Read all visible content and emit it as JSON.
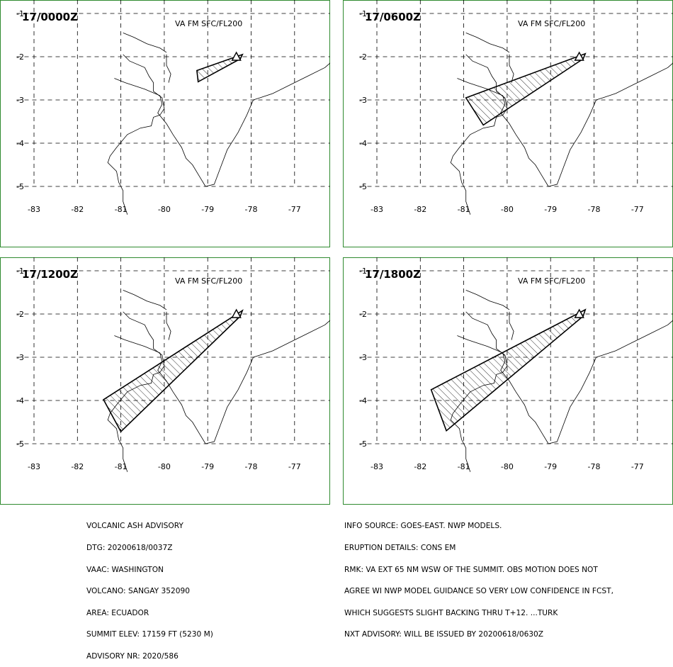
{
  "map_layout": {
    "lon_ticks": [
      -83,
      -82,
      -81,
      -80,
      -79,
      -78,
      -77
    ],
    "lat_ticks": [
      -1,
      -2,
      -3,
      -4,
      -5
    ],
    "frame_color": "#2f8a2f",
    "grid_style": "dashed"
  },
  "panels": [
    {
      "time_label": "17/0000Z",
      "level_label": "VA FM SFC/FL200",
      "ash_polygon": [
        [
          -79.25,
          -2.32
        ],
        [
          -78.2,
          -1.95
        ],
        [
          -78.25,
          -2.05
        ],
        [
          -79.22,
          -2.58
        ]
      ]
    },
    {
      "time_label": "17/0600Z",
      "level_label": "VA FM SFC/FL200",
      "ash_polygon": [
        [
          -80.95,
          -2.95
        ],
        [
          -78.2,
          -1.93
        ],
        [
          -78.25,
          -2.05
        ],
        [
          -80.55,
          -3.58
        ]
      ]
    },
    {
      "time_label": "17/1200Z",
      "level_label": "VA FM SFC/FL200",
      "ash_polygon": [
        [
          -81.4,
          -3.98
        ],
        [
          -78.2,
          -1.92
        ],
        [
          -78.25,
          -2.05
        ],
        [
          -81.0,
          -4.72
        ]
      ]
    },
    {
      "time_label": "17/1800Z",
      "level_label": "VA FM SFC/FL200",
      "ash_polygon": [
        [
          -81.75,
          -3.75
        ],
        [
          -78.2,
          -1.9
        ],
        [
          -78.25,
          -2.05
        ],
        [
          -81.4,
          -4.7
        ]
      ]
    }
  ],
  "volcano": {
    "name": "SANGAY",
    "lon": -78.34,
    "lat": -2.0
  },
  "advisory_left": [
    "VOLCANIC ASH ADVISORY",
    "DTG: 20200618/0037Z",
    "VAAC: WASHINGTON",
    "VOLCANO: SANGAY 352090",
    "AREA: ECUADOR",
    "SUMMIT ELEV: 17159 FT (5230 M)",
    "ADVISORY NR: 2020/586"
  ],
  "advisory_right": [
    "INFO SOURCE: GOES-EAST. NWP MODELS.",
    "ERUPTION DETAILS: CONS EM",
    "RMK: VA EXT 65 NM WSW OF THE SUMMIT. OBS MOTION DOES NOT",
    "AGREE WI NWP MODEL GUIDANCE SO VERY LOW CONFIDENCE IN FCST,",
    "WHICH SUGGESTS SLIGHT BACKING THRU T+12. ...TURK",
    "NXT ADVISORY: WILL BE ISSUED BY 20200618/0630Z"
  ]
}
